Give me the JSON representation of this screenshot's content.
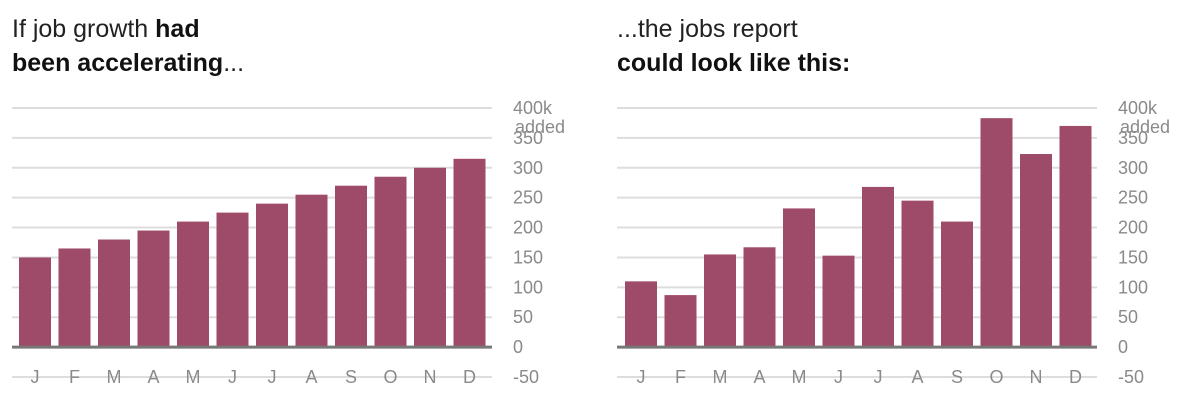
{
  "colors": {
    "bar": "#9e4a69",
    "grid": "#dddddd",
    "baseline": "#777777",
    "label": "#8a8a8a"
  },
  "panels": [
    {
      "title": {
        "line1_normal": "If job growth ",
        "line1_bold": "had",
        "line2_bold": "been accelerating",
        "line2_normal": "..."
      }
    },
    {
      "title": {
        "line1_normal": "...the jobs report",
        "line1_bold": "",
        "line2_bold": "could look like this:",
        "line2_normal": ""
      }
    }
  ],
  "chart_data": [
    {
      "type": "bar",
      "categories": [
        "J",
        "F",
        "M",
        "A",
        "M",
        "J",
        "J",
        "A",
        "S",
        "O",
        "N",
        "D"
      ],
      "values": [
        150,
        165,
        180,
        195,
        210,
        225,
        240,
        255,
        270,
        285,
        300,
        315
      ],
      "ylim": [
        -50,
        400
      ],
      "yticks": [
        400,
        350,
        300,
        250,
        200,
        150,
        100,
        50,
        0,
        -50
      ],
      "ytick_labels": [
        "400k",
        "350",
        "300",
        "250",
        "200",
        "150",
        "100",
        "50",
        "0",
        "-50"
      ],
      "unit_label": "added",
      "grid": true
    },
    {
      "type": "bar",
      "categories": [
        "J",
        "F",
        "M",
        "A",
        "M",
        "J",
        "J",
        "A",
        "S",
        "O",
        "N",
        "D"
      ],
      "values": [
        110,
        87,
        155,
        167,
        232,
        153,
        268,
        245,
        210,
        383,
        323,
        370
      ],
      "ylim": [
        -50,
        400
      ],
      "yticks": [
        400,
        350,
        300,
        250,
        200,
        150,
        100,
        50,
        0,
        -50
      ],
      "ytick_labels": [
        "400k",
        "350",
        "300",
        "250",
        "200",
        "150",
        "100",
        "50",
        "0",
        "-50"
      ],
      "unit_label": "added",
      "grid": true
    }
  ]
}
